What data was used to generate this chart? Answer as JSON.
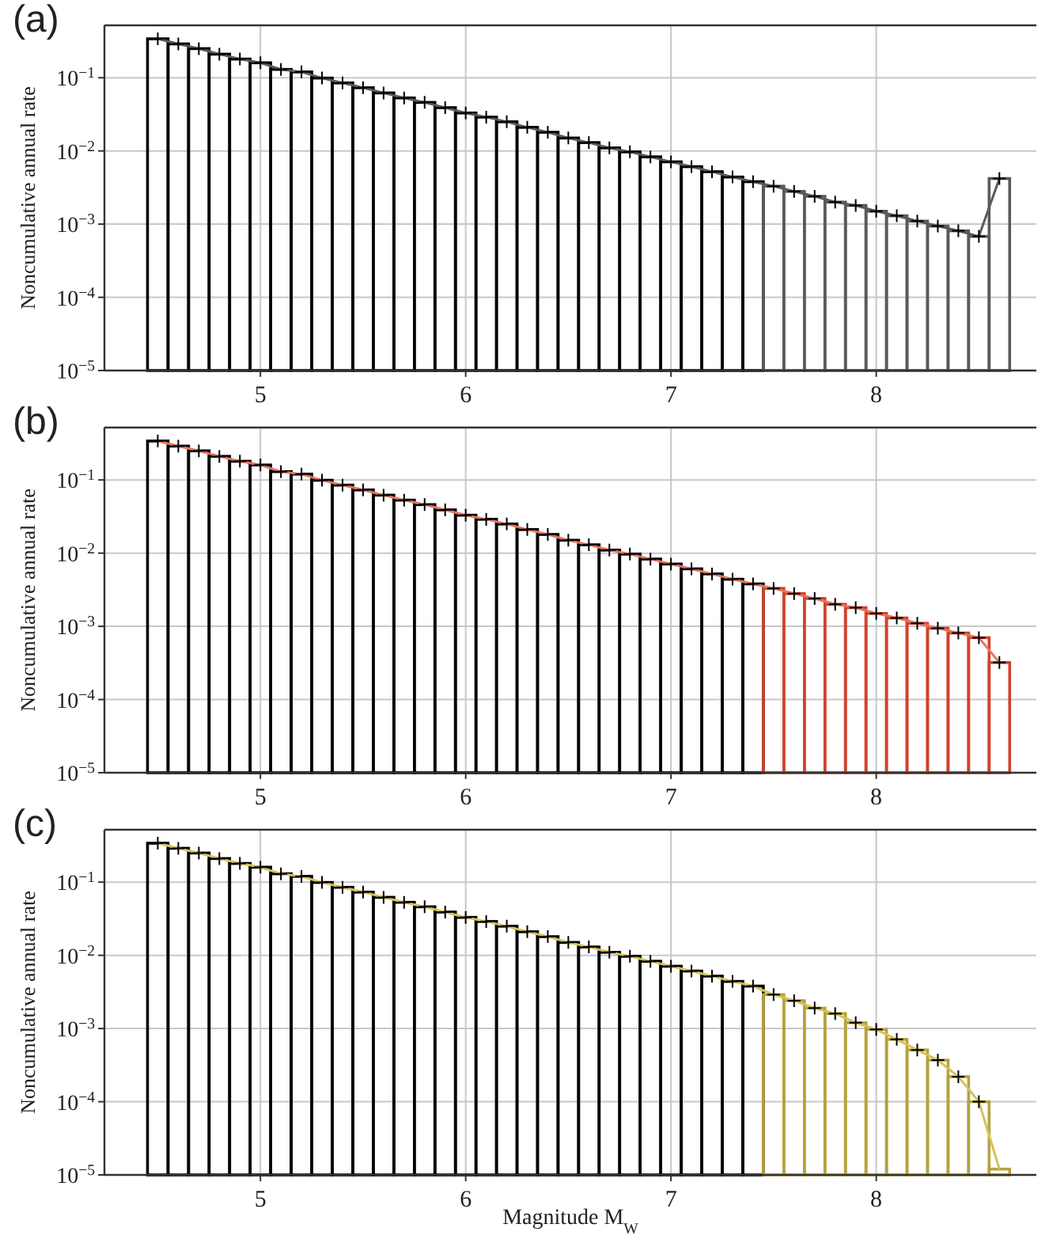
{
  "chart_data": [
    {
      "type": "histogram",
      "title": "(a)",
      "ylabel": "Noncumulative annual rate",
      "log": "y",
      "grid": true,
      "marker": "cross",
      "xlim": [
        4.24,
        8.78
      ],
      "ylim": [
        1e-05,
        0.52
      ],
      "xticks": [
        5,
        6,
        7,
        8
      ],
      "yticks": [
        {
          "value": 1e-05,
          "label": "10$^{−5}$"
        },
        {
          "value": 0.0001,
          "label": "10$^{−4}$"
        },
        {
          "value": 0.001,
          "label": "10$^{−3}$"
        },
        {
          "value": 0.01,
          "label": "10$^{−2}$"
        },
        {
          "value": 0.1,
          "label": "10$^{−1}$"
        }
      ],
      "series": [
        {
          "type": "histogram",
          "color": "#000000",
          "bins": [
            4.45,
            4.55,
            4.65,
            4.75,
            4.85,
            4.95,
            5.05,
            5.15,
            5.25,
            5.35,
            5.45,
            5.55,
            5.65,
            5.75,
            5.85,
            5.95,
            6.05,
            6.15,
            6.25,
            6.35,
            6.45,
            6.55,
            6.65,
            6.75,
            6.85,
            6.95,
            7.05,
            7.15,
            7.25,
            7.35,
            7.45
          ],
          "values": [
            0.34,
            0.29,
            0.25,
            0.21,
            0.18,
            0.16,
            0.13,
            0.12,
            0.099,
            0.085,
            0.073,
            0.062,
            0.053,
            0.046,
            0.039,
            0.033,
            0.029,
            0.025,
            0.021,
            0.018,
            0.015,
            0.013,
            0.011,
            0.0097,
            0.0083,
            0.0071,
            0.0061,
            0.0052,
            0.0044,
            0.0038
          ]
        },
        {
          "type": "histogram",
          "color": "#5a5a5a",
          "bins": [
            7.45,
            7.55,
            7.65,
            7.75,
            7.85,
            7.95,
            8.05,
            8.15,
            8.25,
            8.35,
            8.45,
            8.55,
            8.65
          ],
          "values": [
            0.0033,
            0.0028,
            0.0024,
            0.002,
            0.0018,
            0.0015,
            0.0013,
            0.0011,
            0.00094,
            0.00081,
            0.00068,
            0.0042
          ]
        },
        {
          "type": "line",
          "marker": "none",
          "color": "#5a5a5a",
          "x": [
            4.5,
            4.6,
            4.7,
            4.8,
            4.9,
            5.0,
            5.1,
            5.2,
            5.3,
            5.4,
            5.5,
            5.6,
            5.7,
            5.8,
            5.9,
            6.0,
            6.1,
            6.2,
            6.3,
            6.4,
            6.5,
            6.6,
            6.7,
            6.8,
            6.9,
            7.0,
            7.1,
            7.2,
            7.3,
            7.4,
            7.5,
            7.6,
            7.7,
            7.8,
            7.9,
            8.0,
            8.1,
            8.2,
            8.3,
            8.4,
            8.5,
            8.6
          ],
          "values": [
            0.34,
            0.29,
            0.25,
            0.21,
            0.18,
            0.16,
            0.13,
            0.12,
            0.099,
            0.085,
            0.073,
            0.062,
            0.053,
            0.046,
            0.039,
            0.033,
            0.029,
            0.025,
            0.021,
            0.018,
            0.015,
            0.013,
            0.011,
            0.0097,
            0.0083,
            0.0071,
            0.0061,
            0.0052,
            0.0044,
            0.0038,
            0.0033,
            0.0028,
            0.0024,
            0.002,
            0.0018,
            0.0015,
            0.0013,
            0.0011,
            0.00094,
            0.00081,
            0.00068,
            0.0042
          ]
        },
        {
          "type": "scatter",
          "color": "#000000",
          "x": [
            4.5,
            4.6,
            4.7,
            4.8,
            4.9,
            5.0,
            5.1,
            5.2,
            5.3,
            5.4,
            5.5,
            5.6,
            5.7,
            5.8,
            5.9,
            6.0,
            6.1,
            6.2,
            6.3,
            6.4,
            6.5,
            6.6,
            6.7,
            6.8,
            6.9,
            7.0,
            7.1,
            7.2,
            7.3,
            7.4,
            7.5,
            7.6,
            7.7,
            7.8,
            7.9,
            8.0,
            8.1,
            8.2,
            8.3,
            8.4,
            8.5,
            8.6
          ],
          "values": [
            0.34,
            0.29,
            0.25,
            0.21,
            0.18,
            0.16,
            0.13,
            0.12,
            0.099,
            0.085,
            0.073,
            0.062,
            0.053,
            0.046,
            0.039,
            0.033,
            0.029,
            0.025,
            0.021,
            0.018,
            0.015,
            0.013,
            0.011,
            0.0097,
            0.0083,
            0.0071,
            0.0061,
            0.0052,
            0.0044,
            0.0038,
            0.0033,
            0.0028,
            0.0024,
            0.002,
            0.0018,
            0.0015,
            0.0013,
            0.0011,
            0.00094,
            0.00081,
            0.00068,
            0.0042
          ]
        }
      ]
    },
    {
      "type": "histogram",
      "title": "(b)",
      "ylabel": "Noncumulative annual rate",
      "log": "y",
      "grid": true,
      "marker": "cross",
      "xlim": [
        4.24,
        8.78
      ],
      "ylim": [
        1e-05,
        0.52
      ],
      "xticks": [
        5,
        6,
        7,
        8
      ],
      "yticks": [
        {
          "value": 1e-05,
          "label": "10$^{−5}$"
        },
        {
          "value": 0.0001,
          "label": "10$^{−4}$"
        },
        {
          "value": 0.001,
          "label": "10$^{−3}$"
        },
        {
          "value": 0.01,
          "label": "10$^{−2}$"
        },
        {
          "value": 0.1,
          "label": "10$^{−1}$"
        }
      ],
      "series": [
        {
          "type": "histogram",
          "color": "#000000",
          "bins": [
            4.45,
            4.55,
            4.65,
            4.75,
            4.85,
            4.95,
            5.05,
            5.15,
            5.25,
            5.35,
            5.45,
            5.55,
            5.65,
            5.75,
            5.85,
            5.95,
            6.05,
            6.15,
            6.25,
            6.35,
            6.45,
            6.55,
            6.65,
            6.75,
            6.85,
            6.95,
            7.05,
            7.15,
            7.25,
            7.35,
            7.45
          ],
          "values": [
            0.34,
            0.29,
            0.25,
            0.21,
            0.18,
            0.16,
            0.13,
            0.12,
            0.099,
            0.085,
            0.073,
            0.062,
            0.053,
            0.046,
            0.039,
            0.033,
            0.029,
            0.025,
            0.021,
            0.018,
            0.015,
            0.013,
            0.011,
            0.0097,
            0.0083,
            0.0071,
            0.0061,
            0.0052,
            0.0044,
            0.0038
          ]
        },
        {
          "type": "histogram",
          "color": "#d2412a",
          "bins": [
            7.45,
            7.55,
            7.65,
            7.75,
            7.85,
            7.95,
            8.05,
            8.15,
            8.25,
            8.35,
            8.45,
            8.55,
            8.65
          ],
          "values": [
            0.0033,
            0.0028,
            0.0024,
            0.002,
            0.0018,
            0.0015,
            0.0013,
            0.0011,
            0.00094,
            0.00081,
            0.0007,
            0.00032
          ]
        },
        {
          "type": "line",
          "marker": "none",
          "color": "#e5745f",
          "x": [
            4.5,
            4.6,
            4.7,
            4.8,
            4.9,
            5.0,
            5.1,
            5.2,
            5.3,
            5.4,
            5.5,
            5.6,
            5.7,
            5.8,
            5.9,
            6.0,
            6.1,
            6.2,
            6.3,
            6.4,
            6.5,
            6.6,
            6.7,
            6.8,
            6.9,
            7.0,
            7.1,
            7.2,
            7.3,
            7.4,
            7.5,
            7.6,
            7.7,
            7.8,
            7.9,
            8.0,
            8.1,
            8.2,
            8.3,
            8.4,
            8.5,
            8.6
          ],
          "values": [
            0.34,
            0.29,
            0.25,
            0.21,
            0.18,
            0.16,
            0.13,
            0.12,
            0.099,
            0.085,
            0.073,
            0.062,
            0.053,
            0.046,
            0.039,
            0.033,
            0.029,
            0.025,
            0.021,
            0.018,
            0.015,
            0.013,
            0.011,
            0.0097,
            0.0083,
            0.0071,
            0.0061,
            0.0052,
            0.0044,
            0.0038,
            0.0033,
            0.0028,
            0.0024,
            0.002,
            0.0018,
            0.0015,
            0.0013,
            0.0011,
            0.00094,
            0.00081,
            0.0007,
            0.00032
          ]
        },
        {
          "type": "scatter",
          "color": "#000000",
          "x": [
            4.5,
            4.6,
            4.7,
            4.8,
            4.9,
            5.0,
            5.1,
            5.2,
            5.3,
            5.4,
            5.5,
            5.6,
            5.7,
            5.8,
            5.9,
            6.0,
            6.1,
            6.2,
            6.3,
            6.4,
            6.5,
            6.6,
            6.7,
            6.8,
            6.9,
            7.0,
            7.1,
            7.2,
            7.3,
            7.4,
            7.5,
            7.6,
            7.7,
            7.8,
            7.9,
            8.0,
            8.1,
            8.2,
            8.3,
            8.4,
            8.5,
            8.6
          ],
          "values": [
            0.34,
            0.29,
            0.25,
            0.21,
            0.18,
            0.16,
            0.13,
            0.12,
            0.099,
            0.085,
            0.073,
            0.062,
            0.053,
            0.046,
            0.039,
            0.033,
            0.029,
            0.025,
            0.021,
            0.018,
            0.015,
            0.013,
            0.011,
            0.0097,
            0.0083,
            0.0071,
            0.0061,
            0.0052,
            0.0044,
            0.0038,
            0.0033,
            0.0028,
            0.0024,
            0.002,
            0.0018,
            0.0015,
            0.0013,
            0.0011,
            0.00094,
            0.00081,
            0.0007,
            0.00032
          ]
        }
      ]
    },
    {
      "type": "histogram",
      "title": "(c)",
      "xlabel": "Magnitude M$_{W}$",
      "ylabel": "Noncumulative annual rate",
      "log": "y",
      "grid": true,
      "marker": "cross",
      "xlim": [
        4.24,
        8.78
      ],
      "ylim": [
        1e-05,
        0.52
      ],
      "xticks": [
        5,
        6,
        7,
        8
      ],
      "yticks": [
        {
          "value": 1e-05,
          "label": "10$^{−5}$"
        },
        {
          "value": 0.0001,
          "label": "10$^{−4}$"
        },
        {
          "value": 0.001,
          "label": "10$^{−3}$"
        },
        {
          "value": 0.01,
          "label": "10$^{−2}$"
        },
        {
          "value": 0.1,
          "label": "10$^{−1}$"
        }
      ],
      "series": [
        {
          "type": "histogram",
          "color": "#000000",
          "bins": [
            4.45,
            4.55,
            4.65,
            4.75,
            4.85,
            4.95,
            5.05,
            5.15,
            5.25,
            5.35,
            5.45,
            5.55,
            5.65,
            5.75,
            5.85,
            5.95,
            6.05,
            6.15,
            6.25,
            6.35,
            6.45,
            6.55,
            6.65,
            6.75,
            6.85,
            6.95,
            7.05,
            7.15,
            7.25,
            7.35,
            7.45
          ],
          "values": [
            0.34,
            0.29,
            0.25,
            0.21,
            0.18,
            0.16,
            0.13,
            0.12,
            0.099,
            0.085,
            0.073,
            0.062,
            0.053,
            0.046,
            0.039,
            0.033,
            0.029,
            0.025,
            0.021,
            0.018,
            0.015,
            0.013,
            0.011,
            0.0097,
            0.0083,
            0.0071,
            0.0061,
            0.0052,
            0.0044,
            0.0038
          ]
        },
        {
          "type": "histogram",
          "color": "#b5a23c",
          "bins": [
            7.45,
            7.55,
            7.65,
            7.75,
            7.85,
            7.95,
            8.05,
            8.15,
            8.25,
            8.35,
            8.45,
            8.55,
            8.65
          ],
          "values": [
            0.0029,
            0.0024,
            0.0019,
            0.0016,
            0.0012,
            0.00097,
            0.00071,
            0.00051,
            0.00037,
            0.00022,
            0.0001,
            1.2e-05
          ]
        },
        {
          "type": "line",
          "marker": "none",
          "color": "#d4c25a",
          "x": [
            4.5,
            4.6,
            4.7,
            4.8,
            4.9,
            5.0,
            5.1,
            5.2,
            5.3,
            5.4,
            5.5,
            5.6,
            5.7,
            5.8,
            5.9,
            6.0,
            6.1,
            6.2,
            6.3,
            6.4,
            6.5,
            6.6,
            6.7,
            6.8,
            6.9,
            7.0,
            7.1,
            7.2,
            7.3,
            7.4,
            7.5,
            7.6,
            7.7,
            7.8,
            7.9,
            8.0,
            8.1,
            8.2,
            8.3,
            8.4,
            8.5,
            8.6
          ],
          "values": [
            0.34,
            0.29,
            0.25,
            0.21,
            0.18,
            0.16,
            0.13,
            0.12,
            0.099,
            0.085,
            0.073,
            0.062,
            0.053,
            0.046,
            0.039,
            0.033,
            0.029,
            0.025,
            0.021,
            0.018,
            0.015,
            0.013,
            0.011,
            0.0097,
            0.0083,
            0.0071,
            0.0061,
            0.0052,
            0.0044,
            0.0038,
            0.0029,
            0.0024,
            0.0019,
            0.0016,
            0.0012,
            0.00097,
            0.00071,
            0.00051,
            0.00037,
            0.00022,
            0.0001,
            1.2e-05
          ]
        },
        {
          "type": "scatter",
          "color": "#000000",
          "x": [
            4.5,
            4.6,
            4.7,
            4.8,
            4.9,
            5.0,
            5.1,
            5.2,
            5.3,
            5.4,
            5.5,
            5.6,
            5.7,
            5.8,
            5.9,
            6.0,
            6.1,
            6.2,
            6.3,
            6.4,
            6.5,
            6.6,
            6.7,
            6.8,
            6.9,
            7.0,
            7.1,
            7.2,
            7.3,
            7.4,
            7.5,
            7.6,
            7.7,
            7.8,
            7.9,
            8.0,
            8.1,
            8.2,
            8.3,
            8.4,
            8.5
          ],
          "values": [
            0.34,
            0.29,
            0.25,
            0.21,
            0.18,
            0.16,
            0.13,
            0.12,
            0.099,
            0.085,
            0.073,
            0.062,
            0.053,
            0.046,
            0.039,
            0.033,
            0.029,
            0.025,
            0.021,
            0.018,
            0.015,
            0.013,
            0.011,
            0.0097,
            0.0083,
            0.0071,
            0.0061,
            0.0052,
            0.0044,
            0.0038,
            0.0029,
            0.0024,
            0.0019,
            0.0016,
            0.0012,
            0.00097,
            0.00071,
            0.00051,
            0.00037,
            0.00022,
            0.0001
          ]
        }
      ]
    }
  ]
}
